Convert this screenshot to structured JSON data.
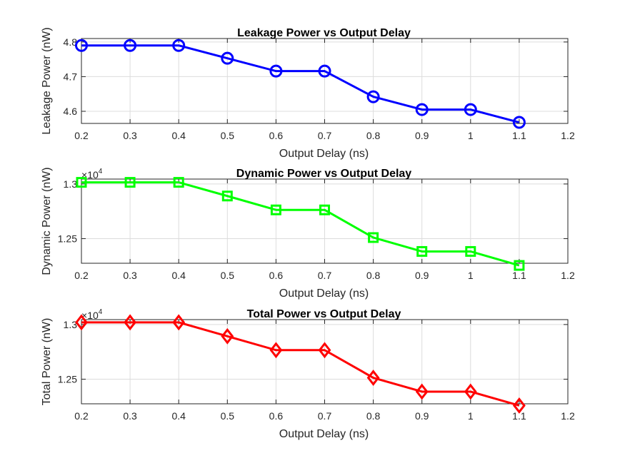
{
  "chart_data": [
    {
      "type": "line",
      "title": "Leakage Power vs Output Delay",
      "xlabel": "Output Delay (ns)",
      "ylabel": "Leakage Power (nW)",
      "xlim": [
        0.2,
        1.2
      ],
      "ylim": [
        4.565,
        4.81
      ],
      "xticks": [
        0.2,
        0.3,
        0.4,
        0.5,
        0.6,
        0.7,
        0.8,
        0.9,
        1.0,
        1.1,
        1.2
      ],
      "xtick_labels": [
        "0.2",
        "0.3",
        "0.4",
        "0.5",
        "0.6",
        "0.7",
        "0.8",
        "0.9",
        "1",
        "1.1",
        "1.2"
      ],
      "yticks": [
        4.6,
        4.7,
        4.8
      ],
      "ytick_labels": [
        "4.6",
        "4.7",
        "4.8"
      ],
      "exponent_label": "",
      "grid": true,
      "color": "#0000ff",
      "marker": "circle",
      "x": [
        0.2,
        0.3,
        0.4,
        0.5,
        0.6,
        0.7,
        0.8,
        0.9,
        1.0,
        1.1
      ],
      "y": [
        4.79,
        4.79,
        4.79,
        4.753,
        4.716,
        4.716,
        4.642,
        4.605,
        4.605,
        4.568
      ]
    },
    {
      "type": "line",
      "title": "Dynamic Power vs Output Delay",
      "xlabel": "Output Delay (ns)",
      "ylabel": "Dynamic Power (nW)",
      "xlim": [
        0.2,
        1.2
      ],
      "ylim": [
        1.2275,
        1.3045
      ],
      "xticks": [
        0.2,
        0.3,
        0.4,
        0.5,
        0.6,
        0.7,
        0.8,
        0.9,
        1.0,
        1.1,
        1.2
      ],
      "xtick_labels": [
        "0.2",
        "0.3",
        "0.4",
        "0.5",
        "0.6",
        "0.7",
        "0.8",
        "0.9",
        "1",
        "1.1",
        "1.2"
      ],
      "yticks": [
        1.25,
        1.3
      ],
      "ytick_labels": [
        "1.25",
        "1.3"
      ],
      "exponent_label": "10",
      "exponent_power": "4",
      "grid": true,
      "color": "#00ff00",
      "marker": "square",
      "x": [
        0.2,
        0.3,
        0.4,
        0.5,
        0.6,
        0.7,
        0.8,
        0.9,
        1.0,
        1.1
      ],
      "y": [
        1.3015,
        1.3015,
        1.3015,
        1.289,
        1.2763,
        1.2763,
        1.251,
        1.2383,
        1.2383,
        1.2255
      ]
    },
    {
      "type": "line",
      "title": "Total Power vs Output Delay",
      "xlabel": "Output Delay (ns)",
      "ylabel": "Total Power (nW)",
      "xlim": [
        0.2,
        1.2
      ],
      "ylim": [
        1.2275,
        1.3045
      ],
      "xticks": [
        0.2,
        0.3,
        0.4,
        0.5,
        0.6,
        0.7,
        0.8,
        0.9,
        1.0,
        1.1,
        1.2
      ],
      "xtick_labels": [
        "0.2",
        "0.3",
        "0.4",
        "0.5",
        "0.6",
        "0.7",
        "0.8",
        "0.9",
        "1",
        "1.1",
        "1.2"
      ],
      "yticks": [
        1.25,
        1.3
      ],
      "ytick_labels": [
        "1.25",
        "1.3"
      ],
      "exponent_label": "10",
      "exponent_power": "4",
      "grid": true,
      "color": "#ff0000",
      "marker": "diamond",
      "x": [
        0.2,
        0.3,
        0.4,
        0.5,
        0.6,
        0.7,
        0.8,
        0.9,
        1.0,
        1.1
      ],
      "y": [
        1.302,
        1.302,
        1.302,
        1.2893,
        1.2766,
        1.2766,
        1.2513,
        1.2386,
        1.2386,
        1.2259
      ]
    }
  ]
}
